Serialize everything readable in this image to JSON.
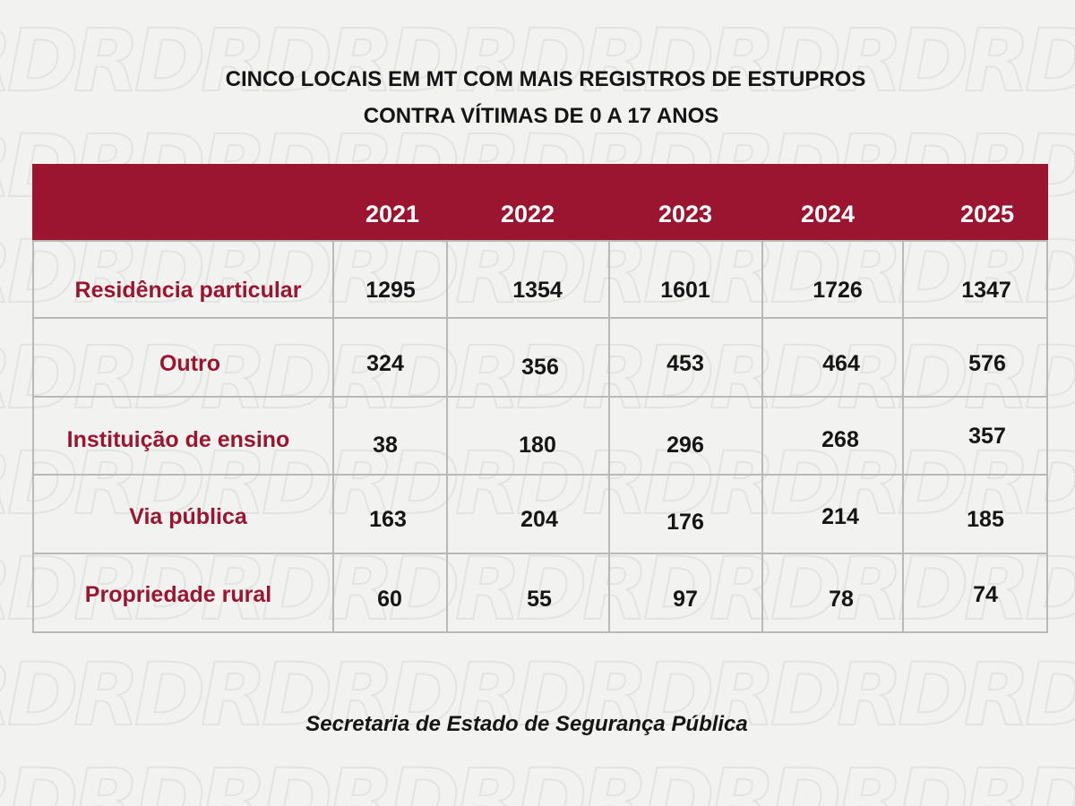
{
  "title": {
    "line1": "CINCO LOCAIS EM MT COM MAIS REGISTROS DE ESTUPROS",
    "line2": "CONTRA VÍTIMAS DE 0 A 17 ANOS"
  },
  "table": {
    "years": [
      "2021",
      "2022",
      "2023",
      "2024",
      "2025"
    ],
    "rows": [
      {
        "label": "Residência particular",
        "values": [
          "1295",
          "1354",
          "1601",
          "1726",
          "1347"
        ]
      },
      {
        "label": "Outro",
        "values": [
          "324",
          "356",
          "453",
          "464",
          "576"
        ]
      },
      {
        "label": "Instituição de ensino",
        "values": [
          "38",
          "180",
          "296",
          "268",
          "357"
        ]
      },
      {
        "label": "Via pública",
        "values": [
          "163",
          "204",
          "176",
          "214",
          "185"
        ]
      },
      {
        "label": "Propriedade rural",
        "values": [
          "60",
          "55",
          "97",
          "78",
          "74"
        ]
      }
    ]
  },
  "source": "Secretaria de Estado de Segurança Pública",
  "watermark": "RD",
  "colors": {
    "accent": "#9c1530",
    "background": "#f2f3f1",
    "text": "#151515",
    "grid": "#b9b9b7"
  }
}
